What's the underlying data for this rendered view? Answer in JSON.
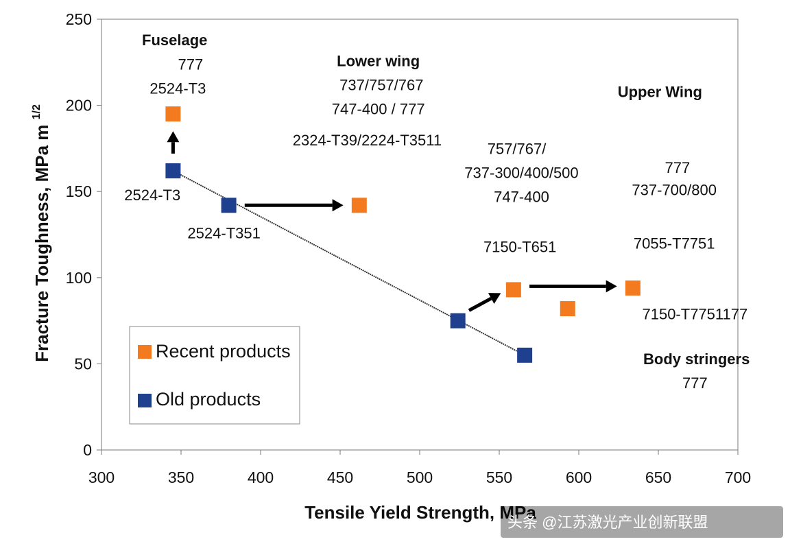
{
  "chart_data": {
    "type": "scatter",
    "xlabel": "Tensile Yield Strength, MPa",
    "ylabel": "Fracture Toughness, MPa m",
    "ylabel_sup": "1/2",
    "xlim": [
      300,
      700
    ],
    "ylim": [
      0,
      250
    ],
    "x_ticks": [
      "300",
      "350",
      "400",
      "450",
      "500",
      "550",
      "600",
      "650",
      "700"
    ],
    "y_ticks": [
      "0",
      "50",
      "100",
      "150",
      "200",
      "250"
    ],
    "grid": false,
    "legend": {
      "position": "bottom-left",
      "entries": [
        "Recent products",
        "Old products"
      ]
    },
    "series": [
      {
        "name": "Recent products",
        "color": "#f47a20",
        "points": [
          {
            "x": 345,
            "y": 195
          },
          {
            "x": 462,
            "y": 142
          },
          {
            "x": 559,
            "y": 93
          },
          {
            "x": 593,
            "y": 82
          },
          {
            "x": 634,
            "y": 94
          }
        ]
      },
      {
        "name": "Old products",
        "color": "#1f3f8f",
        "points": [
          {
            "x": 345,
            "y": 162
          },
          {
            "x": 380,
            "y": 142
          },
          {
            "x": 524,
            "y": 75
          },
          {
            "x": 566,
            "y": 55
          }
        ]
      }
    ],
    "trendline": {
      "from": [
        345,
        162
      ],
      "to": [
        566,
        55
      ]
    },
    "arrows": [
      {
        "from": [
          345,
          172
        ],
        "to": [
          345,
          185
        ]
      },
      {
        "from": [
          390,
          142
        ],
        "to": [
          452,
          142
        ]
      },
      {
        "from": [
          531,
          81
        ],
        "to": [
          551,
          91
        ]
      },
      {
        "from": [
          569,
          95
        ],
        "to": [
          624,
          95
        ]
      }
    ],
    "annotations": [
      {
        "text": "Fuselage",
        "x": 346,
        "y": 238,
        "bold": true
      },
      {
        "text": "777",
        "x": 356,
        "y": 224,
        "bold": false
      },
      {
        "text": "2524-T3",
        "x": 348,
        "y": 210,
        "bold": false
      },
      {
        "text": "2524-T3",
        "x": 332,
        "y": 148,
        "bold": false
      },
      {
        "text": "2524-T351",
        "x": 377,
        "y": 126,
        "bold": false
      },
      {
        "text": "Lower wing",
        "x": 474,
        "y": 226,
        "bold": true
      },
      {
        "text": "737/757/767",
        "x": 476,
        "y": 212,
        "bold": false
      },
      {
        "text": "747-400 / 777",
        "x": 474,
        "y": 198,
        "bold": false
      },
      {
        "text": "2324-T39/2224-T3511",
        "x": 467,
        "y": 180,
        "bold": false
      },
      {
        "text": "Upper Wing",
        "x": 651,
        "y": 208,
        "bold": true
      },
      {
        "text": "757/767/",
        "x": 561,
        "y": 175,
        "bold": false
      },
      {
        "text": "737-300/400/500",
        "x": 564,
        "y": 161,
        "bold": false
      },
      {
        "text": "747-400",
        "x": 564,
        "y": 147,
        "bold": false
      },
      {
        "text": "777",
        "x": 662,
        "y": 164,
        "bold": false
      },
      {
        "text": "737-700/800",
        "x": 660,
        "y": 151,
        "bold": false
      },
      {
        "text": "7150-T651",
        "x": 563,
        "y": 118,
        "bold": false
      },
      {
        "text": "7055-T7751",
        "x": 660,
        "y": 120,
        "bold": false
      },
      {
        "text": "7150-T7751177",
        "x": 673,
        "y": 79,
        "bold": false
      },
      {
        "text": "Body stringers",
        "x": 674,
        "y": 53,
        "bold": true
      },
      {
        "text": "777",
        "x": 673,
        "y": 39,
        "bold": false
      }
    ]
  },
  "watermark": "头条 @江苏激光产业创新联盟"
}
